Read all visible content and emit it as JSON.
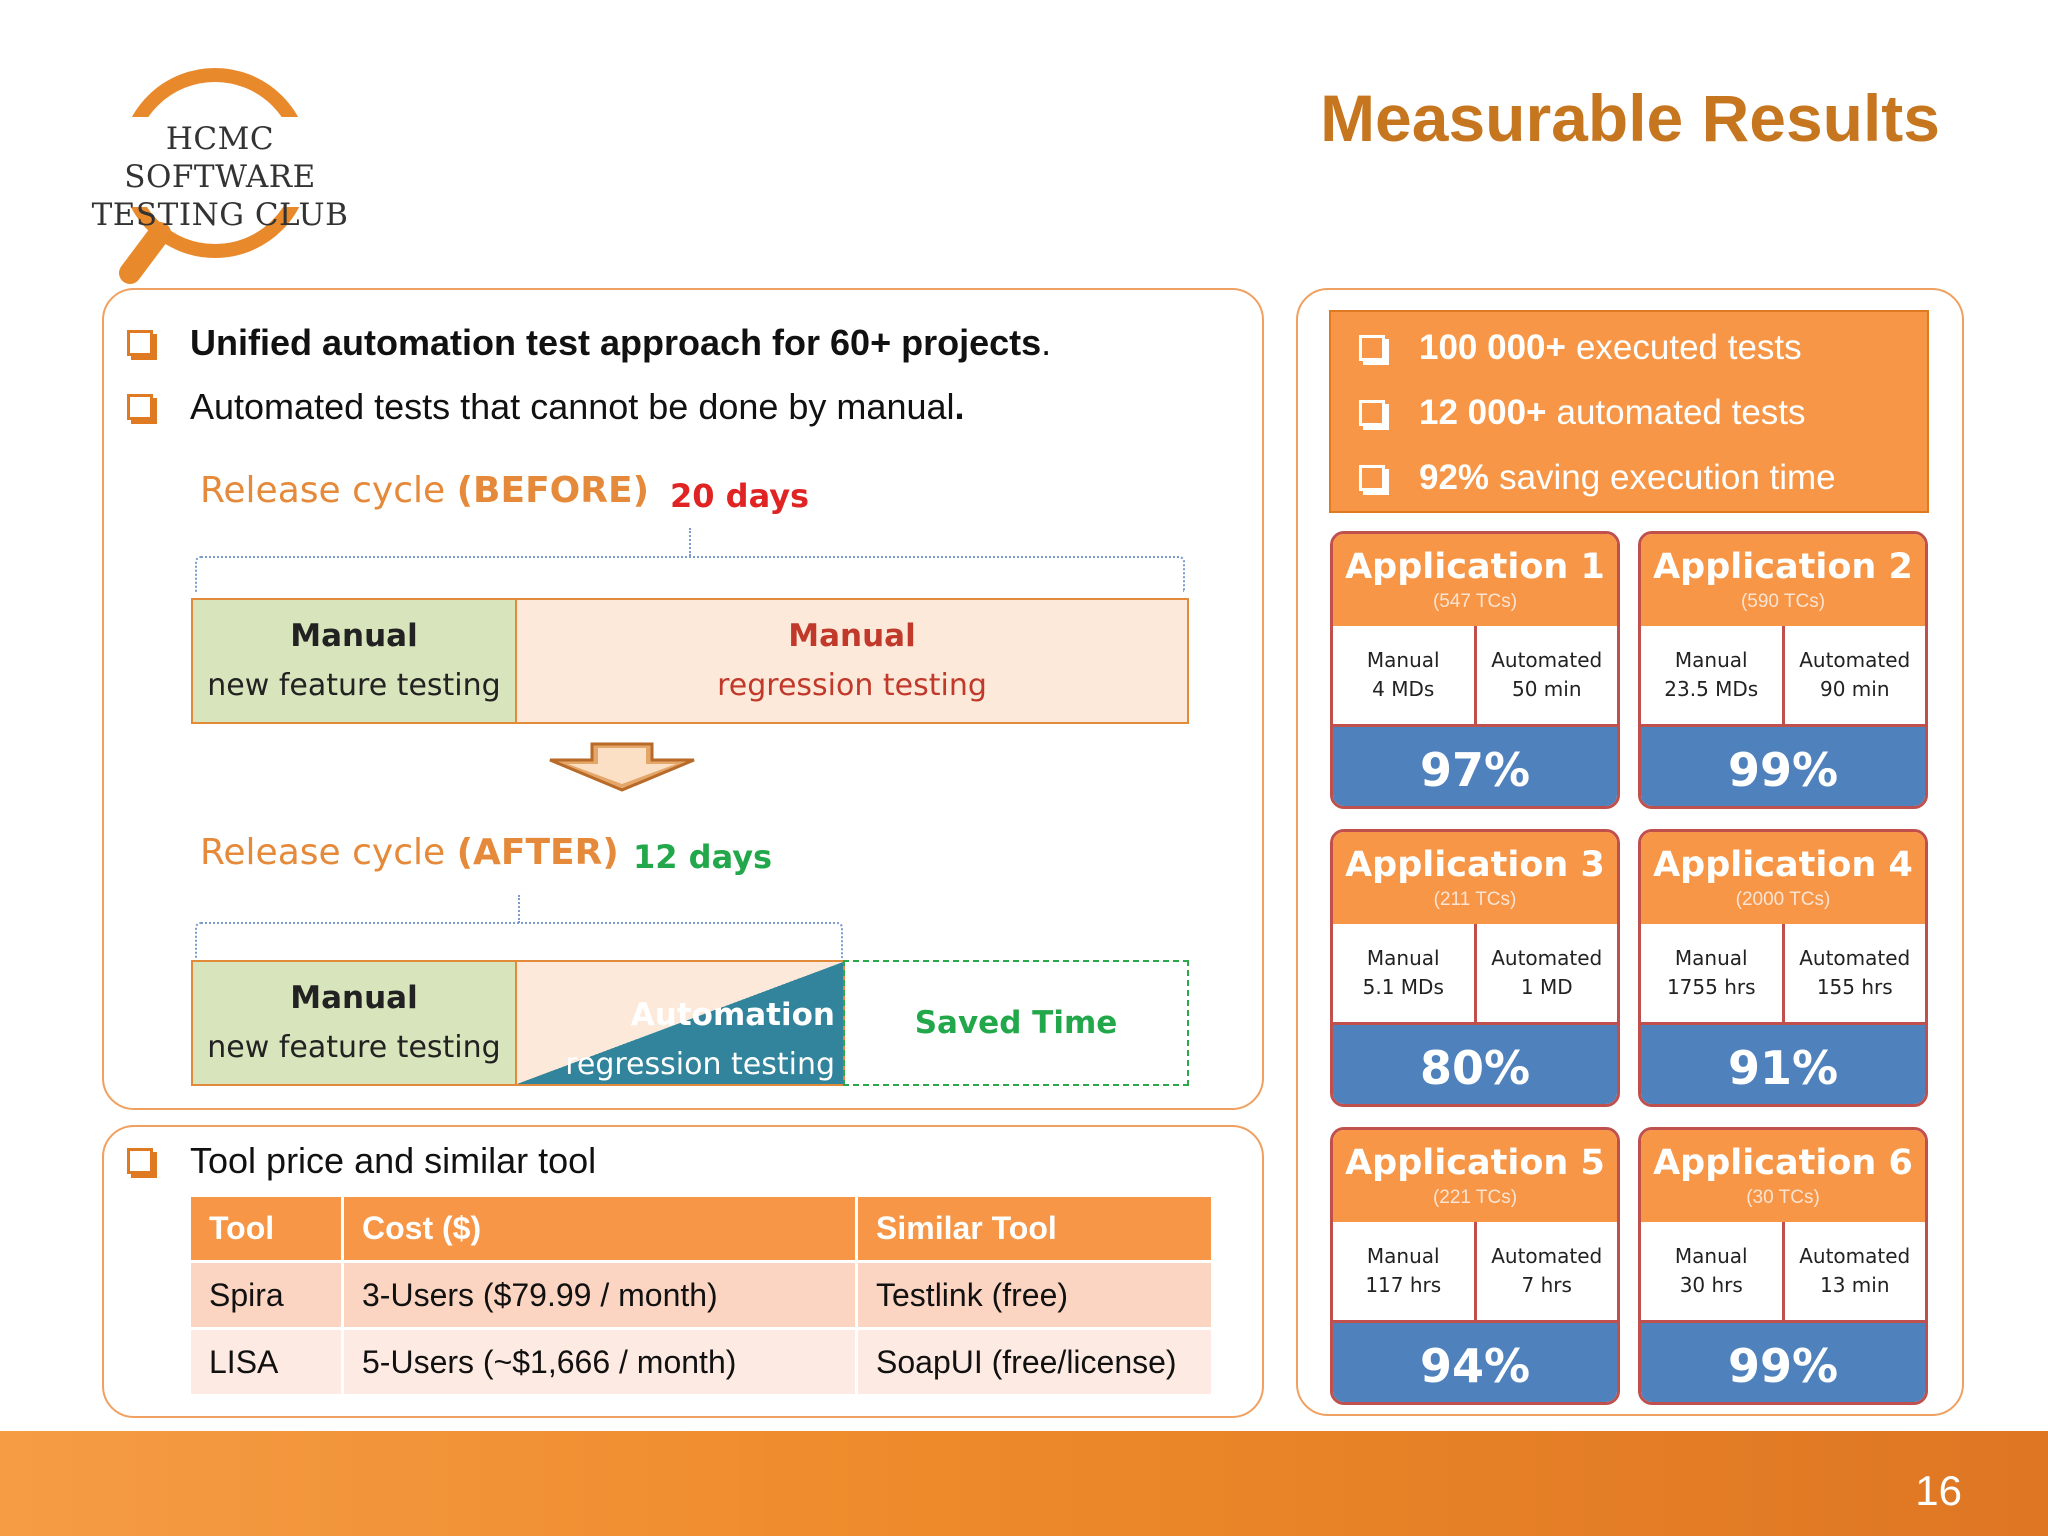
{
  "logo": {
    "line1": "HCMC SOFTWARE",
    "line2": "TESTING CLUB",
    "colors": {
      "ring": "#e88a2c"
    }
  },
  "title": "Measurable Results",
  "left_panel": {
    "bullets": [
      {
        "bold": "Unified automation test approach for 60+ projects",
        "rest": "."
      },
      {
        "text": "Automated tests that cannot be done by manual",
        "bold_end": "."
      }
    ],
    "before": {
      "label_plain": "Release cycle ",
      "label_bold": "(BEFORE)",
      "days": "20 days",
      "manual_head": "Manual",
      "manual_sub": "new feature testing",
      "reg_head": "Manual",
      "reg_sub": "regression testing"
    },
    "after": {
      "label_plain": "Release cycle ",
      "label_bold": "(AFTER)",
      "days": "12 days",
      "manual_head": "Manual",
      "manual_sub": "new feature testing",
      "auto_head": "Automation",
      "auto_sub": "regression testing",
      "saved": "Saved Time"
    }
  },
  "tool_panel": {
    "bullet": "Tool price and similar tool",
    "headers": [
      "Tool",
      "Cost ($)",
      "Similar Tool"
    ],
    "rows": [
      [
        "Spira",
        "3-Users ($79.99 / month)",
        "Testlink (free)"
      ],
      [
        "LISA",
        "5-Users (~$1,666 / month)",
        "SoapUI (free/license)"
      ]
    ]
  },
  "stats": [
    {
      "bold": "100 000+",
      "rest": "executed tests"
    },
    {
      "bold": "12 000+",
      "rest": "automated tests"
    },
    {
      "bold": "92%",
      "rest": "saving execution time"
    }
  ],
  "apps": [
    {
      "name": "Application 1",
      "tcs": "(547 TCs)",
      "manual_label": "Manual",
      "manual_val": "4 MDs",
      "auto_label": "Automated",
      "auto_val": "50 min",
      "pct": "97%"
    },
    {
      "name": "Application 2",
      "tcs": "(590 TCs)",
      "manual_label": "Manual",
      "manual_val": "23.5 MDs",
      "auto_label": "Automated",
      "auto_val": "90 min",
      "pct": "99%"
    },
    {
      "name": "Application 3",
      "tcs": "(211 TCs)",
      "manual_label": "Manual",
      "manual_val": "5.1 MDs",
      "auto_label": "Automated",
      "auto_val": "1 MD",
      "pct": "80%"
    },
    {
      "name": "Application 4",
      "tcs": "(2000 TCs)",
      "manual_label": "Manual",
      "manual_val": "1755 hrs",
      "auto_label": "Automated",
      "auto_val": "155 hrs",
      "pct": "91%"
    },
    {
      "name": "Application 5",
      "tcs": "(221 TCs)",
      "manual_label": "Manual",
      "manual_val": "117 hrs",
      "auto_label": "Automated",
      "auto_val": "7 hrs",
      "pct": "94%"
    },
    {
      "name": "Application 6",
      "tcs": "(30 TCs)",
      "manual_label": "Manual",
      "manual_val": "30 hrs",
      "auto_label": "Automated",
      "auto_val": "13 min",
      "pct": "99%"
    }
  ],
  "page_number": "16"
}
